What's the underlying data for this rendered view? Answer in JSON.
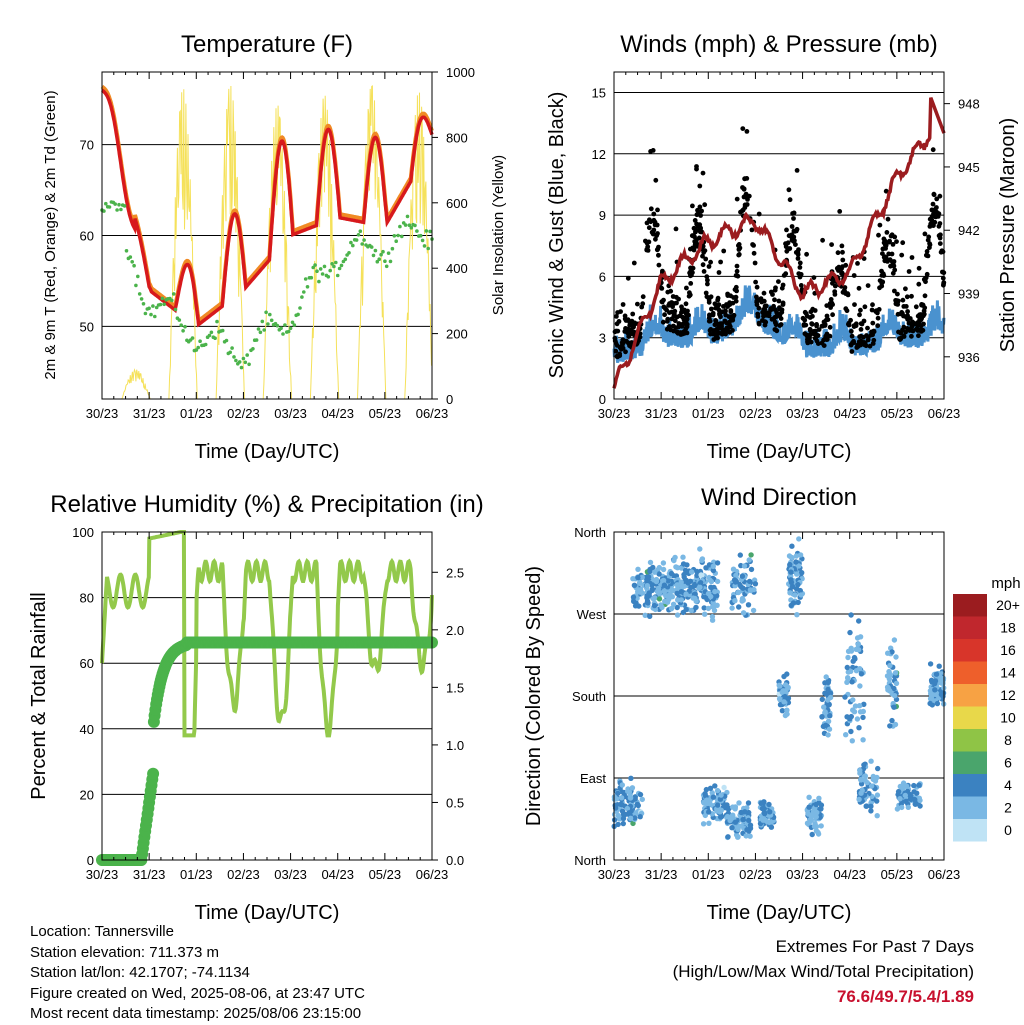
{
  "panels": {
    "temperature": {
      "title": "Temperature (F)",
      "ylabel_left": "2m & 9m T (Red, Orange) & 2m Td (Green)",
      "ylabel_right": "Solar Insolation (Yellow)",
      "xlabel": "Time (Day/UTC)",
      "left_ticks": [
        "50",
        "60",
        "70"
      ],
      "right_ticks": [
        "0",
        "200",
        "400",
        "600",
        "800",
        "1000"
      ]
    },
    "winds": {
      "title": "Winds (mph) & Pressure (mb)",
      "ylabel_left": "Sonic Wind & Gust (Blue, Black)",
      "ylabel_right": "Station Pressure (Maroon)",
      "xlabel": "Time (Day/UTC)",
      "left_ticks": [
        "0",
        "3",
        "6",
        "9",
        "12",
        "15"
      ],
      "right_ticks": [
        "936",
        "939",
        "942",
        "945",
        "948"
      ]
    },
    "humidity": {
      "title": "Relative Humidity (%) & Precipitation (in)",
      "ylabel_left": "Percent & Total Rainfall",
      "xlabel": "Time (Day/UTC)",
      "left_ticks": [
        "0",
        "20",
        "40",
        "60",
        "80",
        "100"
      ],
      "right_ticks": [
        "0.0",
        "0.5",
        "1.0",
        "1.5",
        "2.0",
        "2.5"
      ]
    },
    "direction": {
      "title": "Wind Direction",
      "ylabel_left": "Direction (Colored By Speed)",
      "xlabel": "Time (Day/UTC)",
      "left_ticks": [
        "North",
        "East",
        "South",
        "West",
        "North"
      ],
      "legend_title": "mph",
      "legend_labels": [
        "20+",
        "18",
        "16",
        "14",
        "12",
        "10",
        "8",
        "6",
        "4",
        "2",
        "0"
      ],
      "legend_colors": [
        "#9b1c1f",
        "#c0272d",
        "#d8352a",
        "#ee5f2b",
        "#f7a244",
        "#e8d84a",
        "#8fc446",
        "#4aa56c",
        "#3b82c1",
        "#7ab8e4",
        "#bfe3f5"
      ]
    }
  },
  "x_ticks": [
    "30/23",
    "31/23",
    "01/23",
    "02/23",
    "03/23",
    "04/23",
    "05/23",
    "06/23"
  ],
  "info": {
    "location": "Location: Tannersville",
    "elevation": "Station elevation: 711.373 m",
    "latlon": "Station lat/lon: 42.1707; -74.1134",
    "created": "Figure created on Wed, 2025-08-06, at 23:47 UTC",
    "recent": "Most recent data timestamp: 2025/08/06 23:15:00"
  },
  "extremes": {
    "line1": "Extremes For Past 7 Days",
    "line2": "(High/Low/Max Wind/Total Precipitation)",
    "values": "76.6/49.7/5.4/1.89"
  },
  "colors": {
    "temp2m": "#d7191c",
    "temp9m": "#f08a24",
    "dewpoint": "#4bb34b",
    "solar": "#f5e15a",
    "wind": "#4a92cf",
    "gust": "#000000",
    "pressure": "#9b1c1f",
    "rh": "#93c94b",
    "rain": "#4bb34b"
  },
  "chart_data": [
    {
      "type": "line",
      "title": "Temperature (F)",
      "xlabel": "Time (Day/UTC)",
      "ylabel": "2m & 9m T (Red, Orange) & 2m Td (Green)",
      "y2label": "Solar Insolation (Yellow)",
      "ylim": [
        42,
        78
      ],
      "y2lim": [
        0,
        1000
      ],
      "x": [
        "30/23",
        "31/23",
        "01/23",
        "02/23",
        "03/23",
        "04/23",
        "05/23",
        "06/23"
      ],
      "series": [
        {
          "name": "2m T",
          "values": [
            76,
            54,
            50,
            54,
            60,
            62,
            61,
            70
          ]
        },
        {
          "name": "9m T",
          "values": [
            76,
            54,
            51,
            54,
            60,
            62,
            61,
            70
          ]
        },
        {
          "name": "2m Td",
          "values": [
            63,
            53,
            49,
            47,
            51,
            58,
            59,
            61
          ]
        },
        {
          "name": "Solar Insolation",
          "axis": "right",
          "peaks": [
            90,
            950,
            960,
            900,
            930,
            960,
            940,
            600
          ]
        }
      ]
    },
    {
      "type": "scatter",
      "title": "Winds (mph) & Pressure (mb)",
      "xlabel": "Time (Day/UTC)",
      "ylabel": "Sonic Wind & Gust (Blue, Black)",
      "y2label": "Station Pressure (Maroon)",
      "ylim": [
        0,
        16
      ],
      "y2lim": [
        934,
        949.5
      ],
      "x": [
        "30/23",
        "31/23",
        "01/23",
        "02/23",
        "03/23",
        "04/23",
        "05/23",
        "06/23"
      ],
      "series": [
        {
          "name": "Sonic Wind",
          "values": [
            1.5,
            2.5,
            2.5,
            3.5,
            2,
            2,
            2.5,
            2.5
          ]
        },
        {
          "name": "Gust",
          "values": [
            3,
            8,
            6,
            9,
            6,
            4,
            6,
            8
          ]
        },
        {
          "name": "Station Pressure",
          "axis": "right",
          "values": [
            934.5,
            939.5,
            941.5,
            942.5,
            939,
            940,
            944.5,
            947.5
          ]
        }
      ]
    },
    {
      "type": "line",
      "title": "Relative Humidity (%) & Precipitation (in)",
      "xlabel": "Time (Day/UTC)",
      "ylabel": "Percent & Total Rainfall",
      "ylim": [
        0,
        100
      ],
      "y2lim": [
        0,
        2.85
      ],
      "x": [
        "30/23",
        "31/23",
        "01/23",
        "02/23",
        "03/23",
        "04/23",
        "05/23",
        "06/23"
      ],
      "series": [
        {
          "name": "Relative Humidity",
          "values": [
            60,
            100,
            60,
            45,
            45,
            60,
            65,
            70
          ]
        },
        {
          "name": "Total Precipitation",
          "axis": "right",
          "values": [
            0,
            0.05,
            1.89,
            1.89,
            1.89,
            1.89,
            1.89,
            1.89
          ]
        }
      ]
    },
    {
      "type": "scatter",
      "title": "Wind Direction",
      "xlabel": "Time (Day/UTC)",
      "ylabel": "Direction (Colored By Speed)",
      "y_categories": [
        "North",
        "East",
        "South",
        "West",
        "North"
      ],
      "x": [
        "30/23",
        "31/23",
        "01/23",
        "02/23",
        "03/23",
        "04/23",
        "05/23",
        "06/23"
      ],
      "colorbar": {
        "label": "mph",
        "ticks": [
          "0",
          "2",
          "4",
          "6",
          "8",
          "10",
          "12",
          "14",
          "16",
          "18",
          "20+"
        ]
      }
    }
  ]
}
